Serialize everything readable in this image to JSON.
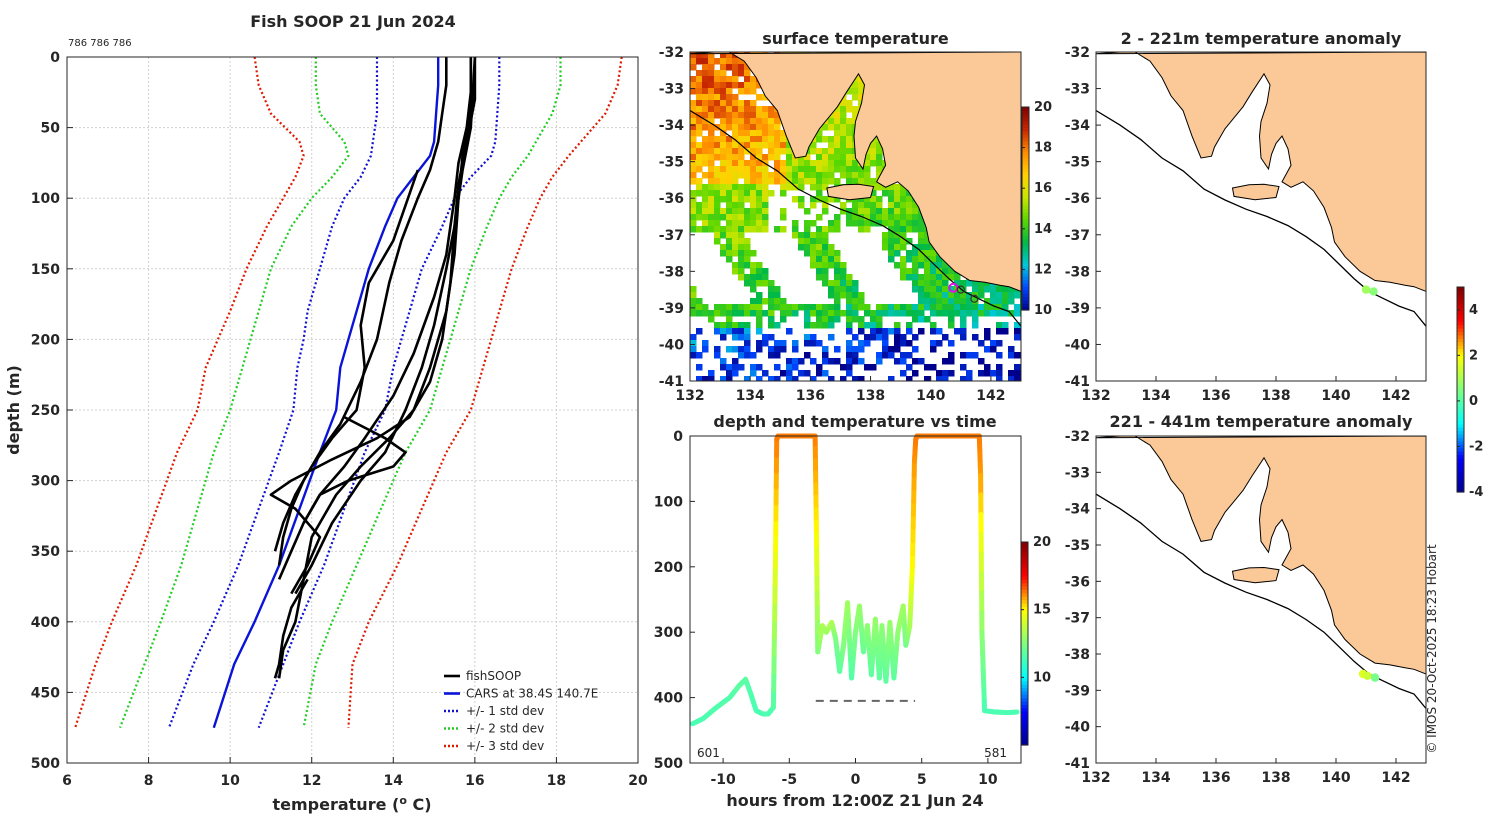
{
  "figure": {
    "title": "Fish SOOP 21 Jun 2024",
    "profile_ids": "786 786 786",
    "credit": "© IMOS 20-Oct-2025 18:23 Hobart",
    "colors": {
      "fishsoop": "#000000",
      "cars": "#0a14d8",
      "std1": "#1010d0",
      "std2": "#22cc22",
      "std3": "#dd1a00",
      "land": "#fbc898",
      "coast": "#000000"
    }
  },
  "chart_data": [
    {
      "id": "profile",
      "type": "line",
      "xlabel": "temperature (",
      "xlabel_sup": "o",
      "xlabel_end": " C)",
      "ylabel": "depth (m)",
      "xlim": [
        6,
        20
      ],
      "ylim": [
        0,
        500
      ],
      "xticks": [
        6,
        8,
        10,
        12,
        14,
        16,
        18,
        20
      ],
      "yticks": [
        0,
        50,
        100,
        150,
        200,
        250,
        300,
        350,
        400,
        450,
        500
      ],
      "cars": {
        "name": "CARS at 38.4S 140.7E",
        "depth": [
          0,
          20,
          40,
          60,
          70,
          85,
          100,
          120,
          150,
          180,
          200,
          220,
          250,
          280,
          320,
          360,
          400,
          430,
          475
        ],
        "temp": [
          15.1,
          15.1,
          15.05,
          15.0,
          14.9,
          14.5,
          14.1,
          13.8,
          13.4,
          13.1,
          12.9,
          12.7,
          12.6,
          12.2,
          11.7,
          11.2,
          10.6,
          10.1,
          9.6
        ]
      },
      "std": [
        {
          "name": "+/- 1 std dev",
          "key": "std1",
          "left": {
            "depth": [
              0,
              20,
              40,
              60,
              70,
              85,
              100,
              120,
              150,
              180,
              200,
              220,
              250,
              280,
              320,
              360,
              400,
              430,
              475
            ],
            "temp": [
              13.6,
              13.6,
              13.6,
              13.5,
              13.45,
              13.2,
              12.8,
              12.5,
              12.2,
              11.9,
              11.8,
              11.65,
              11.55,
              11.2,
              10.7,
              10.2,
              9.6,
              9.1,
              8.5
            ]
          },
          "right": {
            "depth": [
              0,
              20,
              40,
              60,
              70,
              85,
              100,
              120,
              150,
              180,
              200,
              220,
              250,
              280,
              320,
              360,
              400,
              430,
              475
            ],
            "temp": [
              16.6,
              16.6,
              16.55,
              16.5,
              16.4,
              15.9,
              15.5,
              15.2,
              14.7,
              14.4,
              14.2,
              14.0,
              13.8,
              13.3,
              12.8,
              12.3,
              11.7,
              11.3,
              10.7
            ]
          }
        },
        {
          "name": "+/- 2 std dev",
          "key": "std2",
          "left": {
            "depth": [
              0,
              20,
              40,
              60,
              70,
              85,
              100,
              120,
              150,
              180,
              200,
              220,
              250,
              280,
              320,
              360,
              400,
              430,
              475
            ],
            "temp": [
              12.1,
              12.1,
              12.2,
              12.8,
              12.9,
              12.5,
              12.0,
              11.5,
              11.0,
              10.7,
              10.5,
              10.3,
              10.0,
              9.6,
              9.2,
              8.8,
              8.3,
              7.9,
              7.3
            ]
          },
          "right": {
            "depth": [
              0,
              20,
              40,
              60,
              70,
              85,
              100,
              120,
              150,
              180,
              200,
              220,
              250,
              280,
              320,
              360,
              400,
              430,
              475
            ],
            "temp": [
              18.1,
              18.1,
              17.9,
              17.5,
              17.3,
              16.9,
              16.6,
              16.3,
              15.9,
              15.6,
              15.4,
              15.2,
              14.9,
              14.3,
              13.7,
              13.1,
              12.5,
              12.1,
              11.8
            ]
          }
        },
        {
          "name": "+/- 3 std dev",
          "key": "std3",
          "left": {
            "depth": [
              0,
              20,
              40,
              60,
              70,
              85,
              100,
              120,
              150,
              180,
              200,
              220,
              250,
              280,
              320,
              360,
              400,
              430,
              475
            ],
            "temp": [
              10.6,
              10.7,
              11.0,
              11.7,
              11.8,
              11.6,
              11.3,
              10.9,
              10.4,
              10.0,
              9.7,
              9.4,
              9.2,
              8.7,
              8.2,
              7.7,
              7.1,
              6.7,
              6.2
            ]
          },
          "right": {
            "depth": [
              0,
              20,
              40,
              60,
              70,
              85,
              100,
              120,
              150,
              180,
              200,
              220,
              250,
              280,
              320,
              360,
              400,
              430,
              475
            ],
            "temp": [
              19.6,
              19.5,
              19.2,
              18.6,
              18.3,
              17.9,
              17.6,
              17.3,
              16.9,
              16.6,
              16.4,
              16.2,
              15.9,
              15.3,
              14.7,
              14.1,
              13.4,
              13.0,
              12.9
            ]
          }
        }
      ],
      "fishsoop": {
        "name": "fishSOOP",
        "profiles": [
          {
            "depth": [
              0,
              20,
              40,
              60,
              80,
              100,
              130,
              160,
              200,
              230,
              260,
              280,
              300,
              320,
              340,
              360
            ],
            "temp": [
              15.3,
              15.3,
              15.2,
              15.1,
              14.9,
              14.6,
              14.2,
              13.9,
              13.6,
              13.2,
              12.7,
              12.2,
              11.8,
              11.5,
              11.3,
              11.2
            ]
          },
          {
            "depth": [
              0,
              25,
              50,
              75,
              100,
              140,
              170,
              210,
              240,
              270,
              290,
              310,
              330,
              350,
              370
            ],
            "temp": [
              15.9,
              15.9,
              15.8,
              15.6,
              15.5,
              15.3,
              15.0,
              14.5,
              14.0,
              13.3,
              12.8,
              12.2,
              11.8,
              11.5,
              11.2
            ]
          },
          {
            "depth": [
              0,
              30,
              60,
              90,
              120,
              150,
              190,
              220,
              250,
              280,
              300,
              330,
              360,
              380
            ],
            "temp": [
              16.0,
              16.0,
              15.8,
              15.6,
              15.5,
              15.3,
              15.0,
              14.7,
              14.3,
              13.8,
              13.2,
              12.5,
              12.0,
              11.6
            ]
          },
          {
            "depth": [
              0,
              40,
              70,
              100,
              140,
              180,
              220,
              250,
              270,
              290,
              310,
              340,
              370,
              400,
              420,
              440
            ],
            "temp": [
              15.9,
              15.9,
              15.7,
              15.6,
              15.5,
              15.3,
              14.9,
              14.5,
              13.9,
              13.2,
              12.6,
              12.0,
              11.8,
              11.6,
              11.3,
              11.2
            ]
          },
          {
            "depth": [
              0,
              50,
              80,
              120,
              160,
              200,
              230,
              255,
              270,
              285,
              300,
              310,
              320,
              340,
              360,
              380
            ],
            "temp": [
              16.0,
              15.9,
              15.7,
              15.5,
              15.4,
              15.2,
              14.9,
              14.4,
              13.6,
              12.5,
              11.5,
              11.0,
              11.6,
              12.2,
              11.9,
              11.5
            ]
          },
          {
            "depth": [
              80,
              130,
              160,
              190,
              220,
              250,
              270,
              290,
              310,
              330,
              350
            ],
            "temp": [
              14.6,
              14.0,
              13.4,
              13.2,
              13.3,
              13.1,
              12.5,
              12.0,
              11.6,
              11.3,
              11.1
            ]
          },
          {
            "depth": [
              255,
              270,
              280,
              290,
              300,
              310,
              330
            ],
            "temp": [
              12.8,
              13.8,
              14.3,
              14.0,
              12.9,
              12.2,
              11.8
            ]
          },
          {
            "depth": [
              370,
              390,
              410,
              430,
              440
            ],
            "temp": [
              11.9,
              11.5,
              11.3,
              11.2,
              11.1
            ]
          }
        ]
      },
      "legend": {
        "location": "bottom-right"
      }
    },
    {
      "id": "sst-map",
      "type": "heatmap",
      "title": "surface temperature",
      "xlim": [
        132,
        143
      ],
      "ylim": [
        -41,
        -32
      ],
      "xticks": [
        132,
        134,
        136,
        138,
        140,
        142
      ],
      "yticks": [
        -32,
        -33,
        -34,
        -35,
        -36,
        -37,
        -38,
        -39,
        -40,
        -41
      ],
      "colorbar": {
        "min": 10,
        "max": 20,
        "ticks": [
          10,
          12,
          14,
          16,
          18,
          20
        ]
      }
    },
    {
      "id": "time-series",
      "type": "line",
      "title": "depth and temperature vs time",
      "xlabel": "hours from 12:00Z 21 Jun 24",
      "xlim": [
        -12.5,
        12.5
      ],
      "ylim": [
        0,
        500
      ],
      "xticks": [
        -10,
        -5,
        0,
        5,
        10
      ],
      "yticks": [
        0,
        100,
        200,
        300,
        400,
        500
      ],
      "labels": {
        "left": "601",
        "right": "581"
      },
      "reference_depth": 405,
      "reference_x": [
        -3,
        4.5
      ],
      "colorbar": {
        "min": 5,
        "max": 20,
        "ticks": [
          10,
          15,
          20
        ]
      },
      "track": {
        "hours": [
          -12.3,
          -11.5,
          -10.5,
          -9.5,
          -8.8,
          -8.3,
          -7.9,
          -7.5,
          -7.0,
          -6.6,
          -6.2,
          -6.05,
          -5.95,
          -5.85,
          -3.05,
          -2.95,
          -2.85,
          -2.5,
          -2.2,
          -1.8,
          -1.5,
          -1.2,
          -0.9,
          -0.6,
          -0.3,
          0.0,
          0.3,
          0.6,
          0.9,
          1.2,
          1.5,
          1.8,
          2.0,
          2.3,
          2.6,
          2.9,
          3.2,
          3.6,
          3.8,
          4.1,
          4.3,
          4.45,
          4.55,
          4.65,
          9.35,
          9.45,
          9.55,
          9.75,
          10.5,
          11.5,
          12.2
        ],
        "depth": [
          440,
          432,
          415,
          400,
          382,
          372,
          395,
          420,
          425,
          425,
          415,
          200,
          5,
          0,
          0,
          150,
          330,
          290,
          300,
          285,
          310,
          360,
          320,
          255,
          370,
          300,
          260,
          330,
          290,
          365,
          280,
          370,
          290,
          375,
          285,
          370,
          300,
          260,
          320,
          290,
          200,
          40,
          5,
          0,
          0,
          60,
          300,
          420,
          422,
          423,
          422
        ],
        "temp": [
          11.5,
          11.5,
          11.6,
          11.6,
          11.8,
          11.8,
          11.6,
          11.5,
          11.5,
          11.5,
          11.6,
          14.5,
          16.3,
          16.3,
          16.3,
          15.0,
          12.5,
          13.5,
          13.0,
          13.5,
          12.5,
          11.8,
          12.5,
          13.2,
          11.6,
          12.5,
          13.0,
          12.0,
          12.8,
          11.8,
          13.0,
          11.8,
          12.8,
          11.8,
          13.0,
          11.8,
          12.8,
          13.2,
          12.2,
          13.2,
          15.0,
          16.0,
          16.3,
          16.3,
          16.3,
          16.0,
          12.8,
          11.5,
          11.5,
          11.5,
          11.5
        ]
      }
    },
    {
      "id": "anom-map-1",
      "type": "scatter",
      "title": "2 - 221m temperature anomaly",
      "xlim": [
        132,
        143
      ],
      "ylim": [
        -41,
        -32
      ],
      "xticks": [
        132,
        134,
        136,
        138,
        140,
        142
      ],
      "yticks": [
        -32,
        -33,
        -34,
        -35,
        -36,
        -37,
        -38,
        -39,
        -40,
        -41
      ],
      "points": [
        {
          "lon": 141.0,
          "lat": -38.5,
          "anomaly": 0.9
        },
        {
          "lon": 141.25,
          "lat": -38.55,
          "anomaly": 0.6
        }
      ],
      "colorbar": {
        "min": -4,
        "max": 5,
        "ticks": [
          -4,
          -2,
          0,
          2,
          4
        ]
      }
    },
    {
      "id": "anom-map-2",
      "type": "scatter",
      "title": "221 - 441m temperature anomaly",
      "xlim": [
        132,
        143
      ],
      "ylim": [
        -41,
        -32
      ],
      "xticks": [
        132,
        134,
        136,
        138,
        140,
        142
      ],
      "yticks": [
        -32,
        -33,
        -34,
        -35,
        -36,
        -37,
        -38,
        -39,
        -40,
        -41
      ],
      "points": [
        {
          "lon": 140.9,
          "lat": -38.55,
          "anomaly": 1.6
        },
        {
          "lon": 141.05,
          "lat": -38.6,
          "anomaly": 1.4
        },
        {
          "lon": 141.3,
          "lat": -38.65,
          "anomaly": 0.4
        }
      ]
    }
  ]
}
